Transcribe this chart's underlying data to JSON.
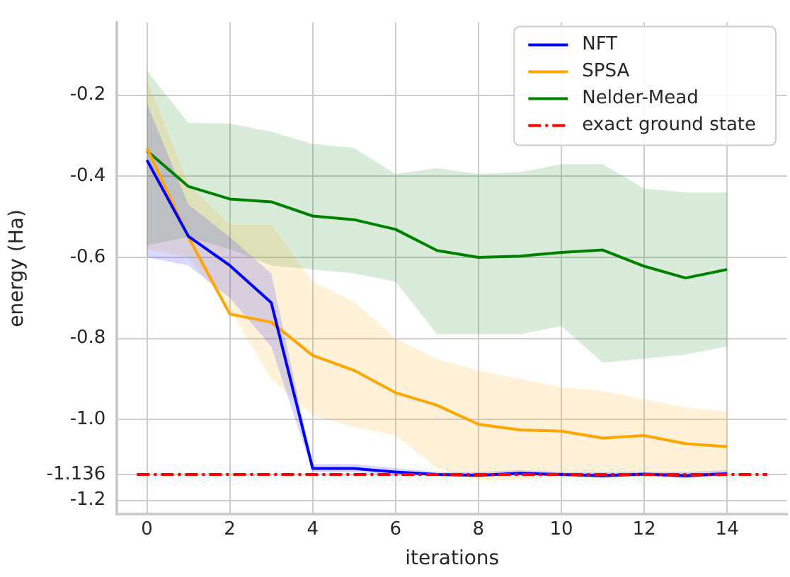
{
  "chart_data": {
    "type": "line",
    "xlabel": "iterations",
    "ylabel": "energy (Ha)",
    "x": [
      0,
      1,
      2,
      3,
      4,
      5,
      6,
      7,
      8,
      9,
      10,
      11,
      12,
      13,
      14
    ],
    "xlim": [
      -0.72,
      15.45
    ],
    "xticks": [
      0,
      2,
      4,
      6,
      8,
      10,
      12,
      14
    ],
    "ylim": [
      -1.234,
      -0.02
    ],
    "yticks": [
      -0.2,
      -0.4,
      -0.6,
      -0.8,
      {
        "value": -1.0,
        "label": "-1.0"
      },
      {
        "value": -1.136,
        "label": "-1.136"
      },
      -1.2
    ],
    "grid": true,
    "legend": "top right",
    "marker": "none",
    "line_style": "solid",
    "series": [
      {
        "name": "NFT",
        "color": "#0000ff",
        "values": [
          -0.36,
          -0.548,
          -0.62,
          -0.712,
          -1.121,
          -1.121,
          -1.13,
          -1.136,
          -1.138,
          -1.133,
          -1.136,
          -1.139,
          -1.135,
          -1.139,
          -1.134
        ],
        "lower": [
          -0.6,
          -0.62,
          -0.7,
          -0.82,
          -1.13,
          -1.13,
          -1.14,
          -1.14,
          -1.14,
          -1.14,
          -1.14,
          -1.145,
          -1.14,
          -1.145,
          -1.14
        ],
        "upper": [
          -0.22,
          -0.47,
          -0.55,
          -0.64,
          -1.11,
          -1.11,
          -1.12,
          -1.13,
          -1.13,
          -1.125,
          -1.13,
          -1.13,
          -1.13,
          -1.13,
          -1.125
        ]
      },
      {
        "name": "SPSA",
        "color": "#ffa500",
        "values": [
          -0.33,
          -0.55,
          -0.74,
          -0.76,
          -0.842,
          -0.879,
          -0.934,
          -0.965,
          -1.012,
          -1.026,
          -1.029,
          -1.046,
          -1.04,
          -1.06,
          -1.067
        ],
        "lower": [
          -0.58,
          -0.6,
          -0.73,
          -0.9,
          -0.99,
          -1.02,
          -1.04,
          -1.12,
          -1.15,
          -1.15,
          -1.14,
          -1.14,
          -1.13,
          -1.15,
          -1.13
        ],
        "upper": [
          -0.16,
          -0.42,
          -0.52,
          -0.52,
          -0.66,
          -0.71,
          -0.8,
          -0.85,
          -0.88,
          -0.9,
          -0.92,
          -0.93,
          -0.95,
          -0.97,
          -0.98
        ]
      },
      {
        "name": "Nelder-Mead",
        "color": "#008000",
        "values": [
          -0.337,
          -0.425,
          -0.456,
          -0.463,
          -0.498,
          -0.507,
          -0.531,
          -0.583,
          -0.6,
          -0.597,
          -0.588,
          -0.582,
          -0.622,
          -0.651,
          -0.63
        ],
        "lower": [
          -0.57,
          -0.55,
          -0.58,
          -0.62,
          -0.63,
          -0.64,
          -0.66,
          -0.79,
          -0.79,
          -0.79,
          -0.77,
          -0.86,
          -0.85,
          -0.84,
          -0.82
        ],
        "upper": [
          -0.14,
          -0.268,
          -0.27,
          -0.29,
          -0.32,
          -0.33,
          -0.394,
          -0.38,
          -0.394,
          -0.39,
          -0.37,
          -0.37,
          -0.43,
          -0.44,
          -0.44
        ]
      }
    ],
    "ref_lines": [
      {
        "axis": "y",
        "value": -1.136,
        "label": "exact ground state",
        "color": "#ff0000",
        "line_style": "dashdot"
      }
    ]
  }
}
